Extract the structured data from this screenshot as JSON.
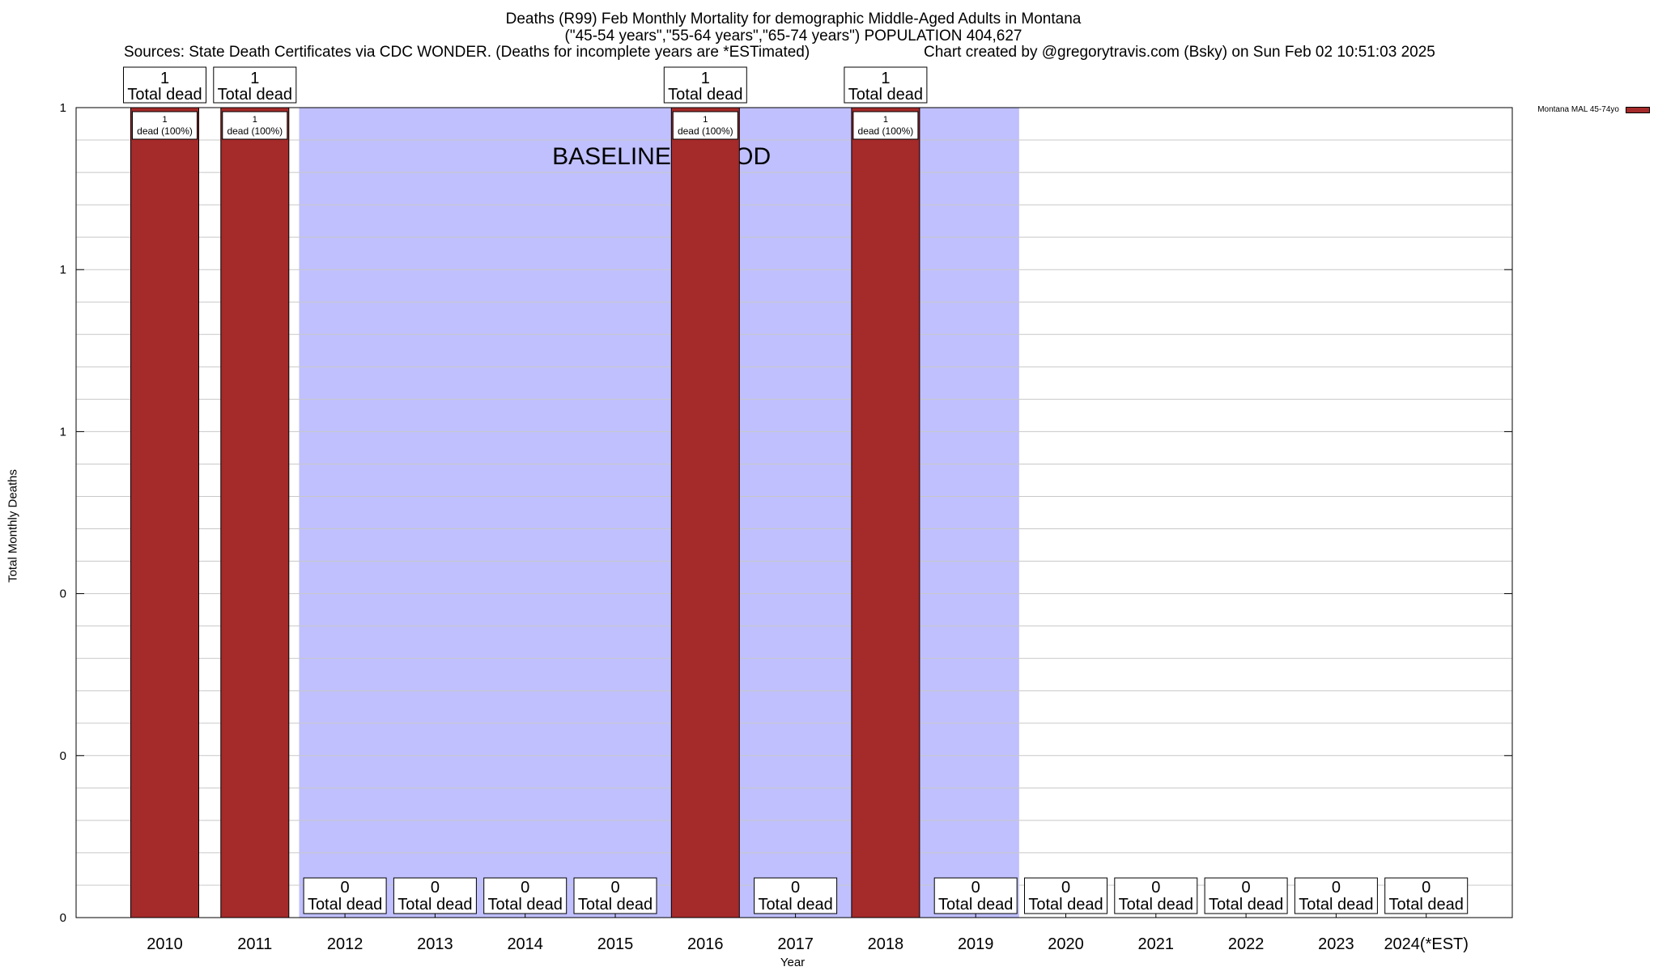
{
  "chart_data": {
    "type": "bar",
    "title": "Deaths (R99) Feb Monthly Mortality for demographic Middle-Aged Adults in Montana",
    "subtitle": "(\"45-54 years\",\"55-64 years\",\"65-74 years\") POPULATION 404,627",
    "source": "Sources: State Death Certificates via CDC WONDER. (Deaths for incomplete years are *ESTimated)",
    "credit": "Chart created by @gregorytravis.com (Bsky) on Sun Feb 02 10:51:03 2025",
    "xlabel": "Year",
    "ylabel": "Total Monthly Deaths",
    "categories": [
      "2010",
      "2011",
      "2012",
      "2013",
      "2014",
      "2015",
      "2016",
      "2017",
      "2018",
      "2019",
      "2020",
      "2021",
      "2022",
      "2023",
      "2024(*EST)"
    ],
    "series": [
      {
        "name": "Montana MAL 45-74yo",
        "color": "#a52a2a",
        "values": [
          1,
          1,
          0,
          0,
          0,
          0,
          1,
          0,
          1,
          0,
          0,
          0,
          0,
          0,
          0
        ]
      }
    ],
    "total_label_suffix": "Total dead",
    "segment_labels": [
      "1\ndead (100%)",
      "1\ndead (100%)",
      "",
      "",
      "",
      "",
      "1\ndead (100%)",
      "",
      "1\ndead (100%)",
      "",
      "",
      "",
      "",
      "",
      ""
    ],
    "ylim": [
      0,
      1
    ],
    "ytick_labels": [
      "0",
      "0",
      "0",
      "1",
      "1",
      "1"
    ],
    "grid": true,
    "legend_position": "top-right",
    "baseline_period": {
      "label": "BASELINE PERIOD",
      "from": "2011",
      "to": "2019",
      "color": "#c0c0ff"
    }
  }
}
